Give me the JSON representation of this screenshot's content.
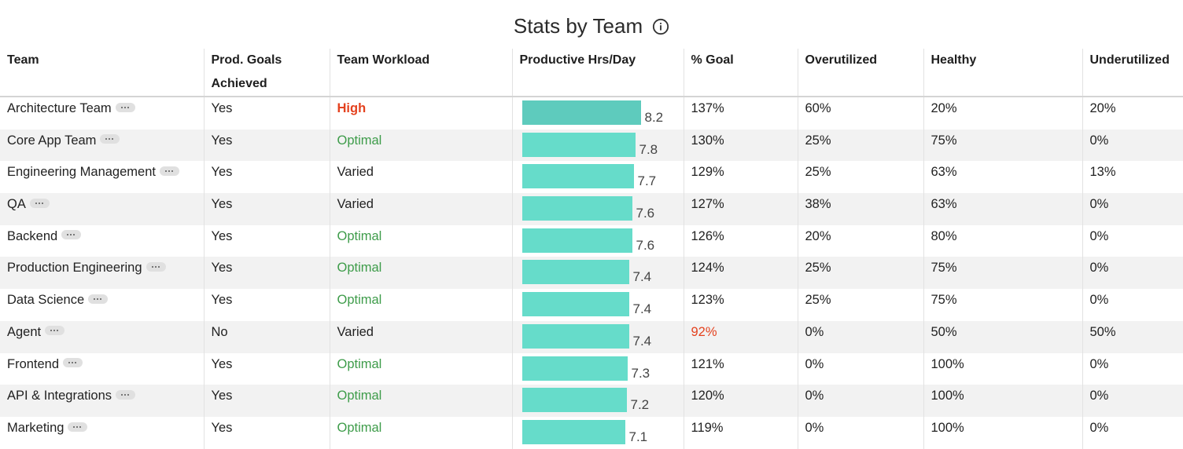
{
  "title": "Stats by Team",
  "colors": {
    "high": "#e4421f",
    "optimal": "#3e9c4a",
    "bar": "#66dcca",
    "bar_first": "#5ecbbd",
    "below_goal": "#e4421f"
  },
  "columns": [
    "Team",
    "Prod. Goals Achieved",
    "Team Workload",
    "Productive Hrs/Day",
    "% Goal",
    "Overutilized",
    "Healthy",
    "Underutilized"
  ],
  "bar_max": 8.2,
  "rows": [
    {
      "team": "Architecture Team",
      "goals": "Yes",
      "workload": "High",
      "workload_level": "high",
      "hrs": "8.2",
      "goal": "137%",
      "goal_below": false,
      "over": "60%",
      "healthy": "20%",
      "under": "20%"
    },
    {
      "team": "Core App Team",
      "goals": "Yes",
      "workload": "Optimal",
      "workload_level": "optimal",
      "hrs": "7.8",
      "goal": "130%",
      "goal_below": false,
      "over": "25%",
      "healthy": "75%",
      "under": "0%"
    },
    {
      "team": "Engineering Management",
      "goals": "Yes",
      "workload": "Varied",
      "workload_level": "varied",
      "hrs": "7.7",
      "goal": "129%",
      "goal_below": false,
      "over": "25%",
      "healthy": "63%",
      "under": "13%"
    },
    {
      "team": "QA",
      "goals": "Yes",
      "workload": "Varied",
      "workload_level": "varied",
      "hrs": "7.6",
      "goal": "127%",
      "goal_below": false,
      "over": "38%",
      "healthy": "63%",
      "under": "0%"
    },
    {
      "team": "Backend",
      "goals": "Yes",
      "workload": "Optimal",
      "workload_level": "optimal",
      "hrs": "7.6",
      "goal": "126%",
      "goal_below": false,
      "over": "20%",
      "healthy": "80%",
      "under": "0%"
    },
    {
      "team": "Production Engineering",
      "goals": "Yes",
      "workload": "Optimal",
      "workload_level": "optimal",
      "hrs": "7.4",
      "goal": "124%",
      "goal_below": false,
      "over": "25%",
      "healthy": "75%",
      "under": "0%"
    },
    {
      "team": "Data Science",
      "goals": "Yes",
      "workload": "Optimal",
      "workload_level": "optimal",
      "hrs": "7.4",
      "goal": "123%",
      "goal_below": false,
      "over": "25%",
      "healthy": "75%",
      "under": "0%"
    },
    {
      "team": "Agent",
      "goals": "No",
      "workload": "Varied",
      "workload_level": "varied",
      "hrs": "7.4",
      "goal": "92%",
      "goal_below": true,
      "over": "0%",
      "healthy": "50%",
      "under": "50%"
    },
    {
      "team": "Frontend",
      "goals": "Yes",
      "workload": "Optimal",
      "workload_level": "optimal",
      "hrs": "7.3",
      "goal": "121%",
      "goal_below": false,
      "over": "0%",
      "healthy": "100%",
      "under": "0%"
    },
    {
      "team": "API & Integrations",
      "goals": "Yes",
      "workload": "Optimal",
      "workload_level": "optimal",
      "hrs": "7.2",
      "goal": "120%",
      "goal_below": false,
      "over": "0%",
      "healthy": "100%",
      "under": "0%"
    },
    {
      "team": "Marketing",
      "goals": "Yes",
      "workload": "Optimal",
      "workload_level": "optimal",
      "hrs": "7.1",
      "goal": "119%",
      "goal_below": false,
      "over": "0%",
      "healthy": "100%",
      "under": "0%"
    }
  ]
}
